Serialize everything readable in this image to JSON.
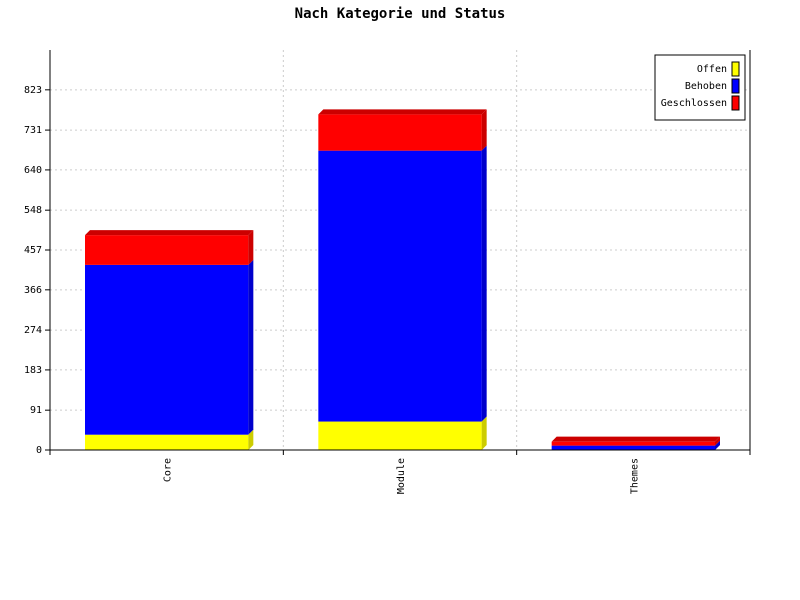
{
  "chart_data": {
    "type": "bar",
    "stacked": true,
    "title": "Nach Kategorie und Status",
    "xlabel": "",
    "ylabel": "",
    "categories": [
      "Core",
      "Module",
      "Themes"
    ],
    "series": [
      {
        "name": "Offen",
        "values": [
          35,
          65,
          0
        ],
        "color": "#ffff00"
      },
      {
        "name": "Behoben",
        "values": [
          388,
          619,
          10
        ],
        "color": "#0000ff"
      },
      {
        "name": "Geschlossen",
        "values": [
          68,
          83,
          9
        ],
        "color": "#ff0000"
      }
    ],
    "ylim": [
      0,
      914
    ],
    "yticks": [
      "0",
      "91",
      "183",
      "274",
      "366",
      "457",
      "548",
      "640",
      "731",
      "823"
    ],
    "grid": true,
    "legend_position": "top-right"
  }
}
